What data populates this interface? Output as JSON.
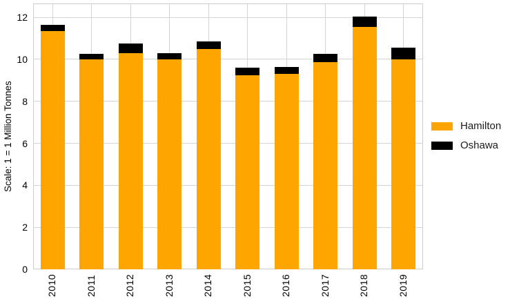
{
  "chart_data": {
    "type": "bar",
    "stacked": true,
    "title": "",
    "xlabel": "",
    "ylabel": "Scale: 1 = 1 Million Tonnes",
    "categories": [
      "2010",
      "2011",
      "2012",
      "2013",
      "2014",
      "2015",
      "2016",
      "2017",
      "2018",
      "2019"
    ],
    "series": [
      {
        "name": "Hamilton",
        "color": "#FFA500",
        "values": [
          11.35,
          10.0,
          10.3,
          10.0,
          10.5,
          9.25,
          9.3,
          9.85,
          11.55,
          10.0
        ]
      },
      {
        "name": "Oshawa",
        "color": "#000000",
        "values": [
          0.3,
          0.25,
          0.45,
          0.3,
          0.35,
          0.35,
          0.35,
          0.4,
          0.5,
          0.55
        ]
      }
    ],
    "yticks": [
      0,
      2,
      4,
      6,
      8,
      10,
      12
    ],
    "ylim": [
      0,
      12.66
    ],
    "grid": "both",
    "grid_color": "#d4d4d4",
    "background_color": "#ffffff",
    "legend_position": "right-outside"
  }
}
